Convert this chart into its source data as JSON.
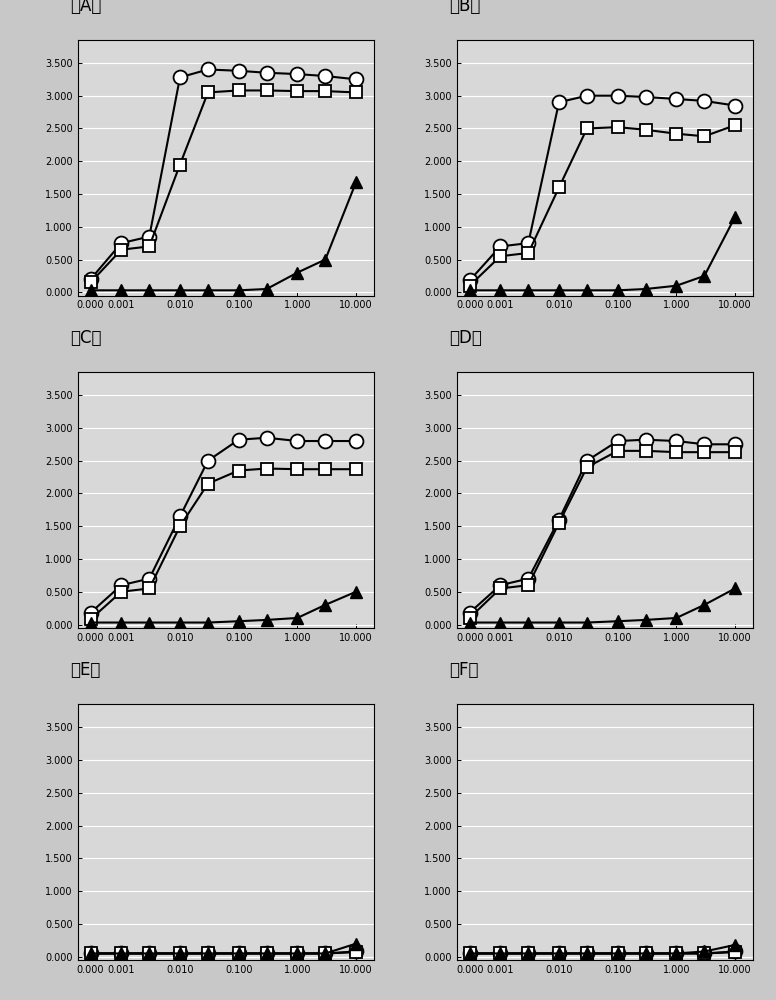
{
  "panels": [
    "A",
    "B",
    "C",
    "D",
    "E",
    "F"
  ],
  "x_values": [
    0.0003,
    0.001,
    0.003,
    0.01,
    0.03,
    0.1,
    0.3,
    1.0,
    3.0,
    10.0
  ],
  "panel_data": {
    "A": {
      "circle": [
        0.2,
        0.75,
        0.85,
        3.28,
        3.4,
        3.38,
        3.35,
        3.33,
        3.3,
        3.25
      ],
      "square": [
        0.15,
        0.65,
        0.7,
        1.95,
        3.05,
        3.08,
        3.08,
        3.07,
        3.07,
        3.05
      ],
      "triangle": [
        0.03,
        0.03,
        0.03,
        0.03,
        0.03,
        0.03,
        0.05,
        0.3,
        0.5,
        1.68
      ]
    },
    "B": {
      "circle": [
        0.18,
        0.7,
        0.75,
        2.9,
        3.0,
        3.0,
        2.98,
        2.95,
        2.92,
        2.85
      ],
      "square": [
        0.1,
        0.55,
        0.6,
        1.6,
        2.5,
        2.52,
        2.48,
        2.42,
        2.38,
        2.55
      ],
      "triangle": [
        0.03,
        0.03,
        0.03,
        0.03,
        0.03,
        0.03,
        0.05,
        0.1,
        0.25,
        1.15
      ]
    },
    "C": {
      "circle": [
        0.18,
        0.6,
        0.7,
        1.65,
        2.5,
        2.82,
        2.85,
        2.8,
        2.8,
        2.8
      ],
      "square": [
        0.08,
        0.5,
        0.55,
        1.5,
        2.15,
        2.35,
        2.38,
        2.37,
        2.37,
        2.37
      ],
      "triangle": [
        0.03,
        0.03,
        0.03,
        0.03,
        0.03,
        0.05,
        0.07,
        0.1,
        0.3,
        0.5
      ]
    },
    "D": {
      "circle": [
        0.18,
        0.6,
        0.7,
        1.6,
        2.5,
        2.8,
        2.82,
        2.8,
        2.75,
        2.75
      ],
      "square": [
        0.1,
        0.55,
        0.6,
        1.55,
        2.4,
        2.65,
        2.65,
        2.63,
        2.63,
        2.63
      ],
      "triangle": [
        0.03,
        0.03,
        0.03,
        0.03,
        0.03,
        0.05,
        0.07,
        0.1,
        0.3,
        0.55
      ]
    },
    "E": {
      "circle": [
        0.05,
        0.05,
        0.05,
        0.05,
        0.05,
        0.05,
        0.05,
        0.05,
        0.05,
        0.08
      ],
      "square": [
        0.05,
        0.05,
        0.05,
        0.05,
        0.05,
        0.05,
        0.05,
        0.05,
        0.05,
        0.07
      ],
      "triangle": [
        0.05,
        0.05,
        0.05,
        0.05,
        0.05,
        0.05,
        0.05,
        0.05,
        0.05,
        0.2
      ]
    },
    "F": {
      "circle": [
        0.05,
        0.05,
        0.05,
        0.05,
        0.05,
        0.05,
        0.05,
        0.05,
        0.05,
        0.08
      ],
      "square": [
        0.05,
        0.05,
        0.05,
        0.05,
        0.05,
        0.05,
        0.05,
        0.05,
        0.05,
        0.07
      ],
      "triangle": [
        0.05,
        0.05,
        0.05,
        0.05,
        0.05,
        0.05,
        0.05,
        0.05,
        0.08,
        0.18
      ]
    }
  },
  "ylim": [
    -0.05,
    3.85
  ],
  "yticks": [
    0.0,
    0.5,
    1.0,
    1.5,
    2.0,
    2.5,
    3.0,
    3.5
  ],
  "ytick_labels": [
    "0.000",
    "0.500",
    "1.000",
    "1.500",
    "2.000",
    "2.500",
    "3.000",
    "3.500"
  ],
  "xtick_vals": [
    0.0003,
    0.001,
    0.01,
    0.1,
    1.0,
    10.0
  ],
  "xtick_labels": [
    "0.000",
    "0.001",
    "0.010",
    "0.100",
    "1.000",
    "10.000"
  ],
  "fig_bg": "#c8c8c8",
  "plot_bg": "#d8d8d8",
  "grid_color": "#ffffff",
  "panel_labels": [
    "（A）",
    "（B）",
    "（C）",
    "（D）",
    "（E）",
    "（F）"
  ],
  "panel_label_fontsize": 12,
  "tick_fontsize": 7,
  "markersize_circle": 10,
  "markersize_square": 8,
  "markersize_triangle": 9,
  "linewidth": 1.5
}
